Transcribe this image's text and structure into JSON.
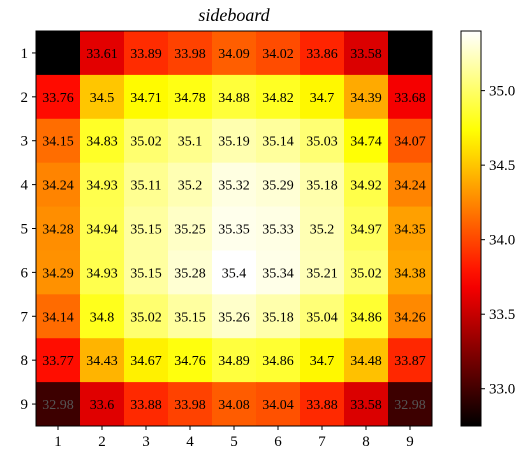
{
  "chart_data": {
    "type": "heatmap",
    "title": "sideboard",
    "xlabel": "",
    "ylabel": "",
    "x_ticks": [
      "1",
      "2",
      "3",
      "4",
      "5",
      "6",
      "7",
      "8",
      "9"
    ],
    "y_ticks": [
      "1",
      "2",
      "3",
      "4",
      "5",
      "6",
      "7",
      "8",
      "9"
    ],
    "colormap": "hot",
    "vmin": 32.75,
    "vmax": 35.4,
    "colorbar_ticks": [
      "33.0",
      "33.5",
      "34.0",
      "34.5",
      "35.0"
    ],
    "colorbar_tick_values": [
      33.0,
      33.5,
      34.0,
      34.5,
      35.0
    ],
    "values": [
      [
        32.75,
        33.61,
        33.89,
        33.98,
        34.09,
        34.02,
        33.86,
        33.58,
        32.75
      ],
      [
        33.76,
        34.5,
        34.71,
        34.78,
        34.88,
        34.82,
        34.7,
        34.39,
        33.68
      ],
      [
        34.15,
        34.83,
        35.02,
        35.1,
        35.19,
        35.14,
        35.03,
        34.74,
        34.07
      ],
      [
        34.24,
        34.93,
        35.11,
        35.2,
        35.32,
        35.29,
        35.18,
        34.92,
        34.24
      ],
      [
        34.28,
        34.94,
        35.15,
        35.25,
        35.35,
        35.33,
        35.2,
        34.97,
        34.35
      ],
      [
        34.29,
        34.93,
        35.15,
        35.28,
        35.4,
        35.34,
        35.21,
        35.02,
        34.38
      ],
      [
        34.14,
        34.8,
        35.02,
        35.15,
        35.26,
        35.18,
        35.04,
        34.86,
        34.26
      ],
      [
        33.77,
        34.43,
        34.67,
        34.76,
        34.89,
        34.86,
        34.7,
        34.48,
        33.87
      ],
      [
        32.98,
        33.6,
        33.88,
        33.98,
        34.08,
        34.04,
        33.88,
        33.58,
        32.98
      ]
    ],
    "labels": [
      [
        "",
        "33.61",
        "33.89",
        "33.98",
        "34.09",
        "34.02",
        "33.86",
        "33.58",
        ""
      ],
      [
        "33.76",
        "34.5",
        "34.71",
        "34.78",
        "34.88",
        "34.82",
        "34.7",
        "34.39",
        "33.68"
      ],
      [
        "34.15",
        "34.83",
        "35.02",
        "35.1",
        "35.19",
        "35.14",
        "35.03",
        "34.74",
        "34.07"
      ],
      [
        "34.24",
        "34.93",
        "35.11",
        "35.2",
        "35.32",
        "35.29",
        "35.18",
        "34.92",
        "34.24"
      ],
      [
        "34.28",
        "34.94",
        "35.15",
        "35.25",
        "35.35",
        "35.33",
        "35.2",
        "34.97",
        "34.35"
      ],
      [
        "34.29",
        "34.93",
        "35.15",
        "35.28",
        "35.4",
        "35.34",
        "35.21",
        "35.02",
        "34.38"
      ],
      [
        "34.14",
        "34.8",
        "35.02",
        "35.15",
        "35.26",
        "35.18",
        "35.04",
        "34.86",
        "34.26"
      ],
      [
        "33.77",
        "34.43",
        "34.67",
        "34.76",
        "34.89",
        "34.86",
        "34.7",
        "34.48",
        "33.87"
      ],
      [
        "32.98",
        "33.6",
        "33.88",
        "33.98",
        "34.08",
        "34.04",
        "33.88",
        "33.58",
        "32.98"
      ]
    ]
  }
}
